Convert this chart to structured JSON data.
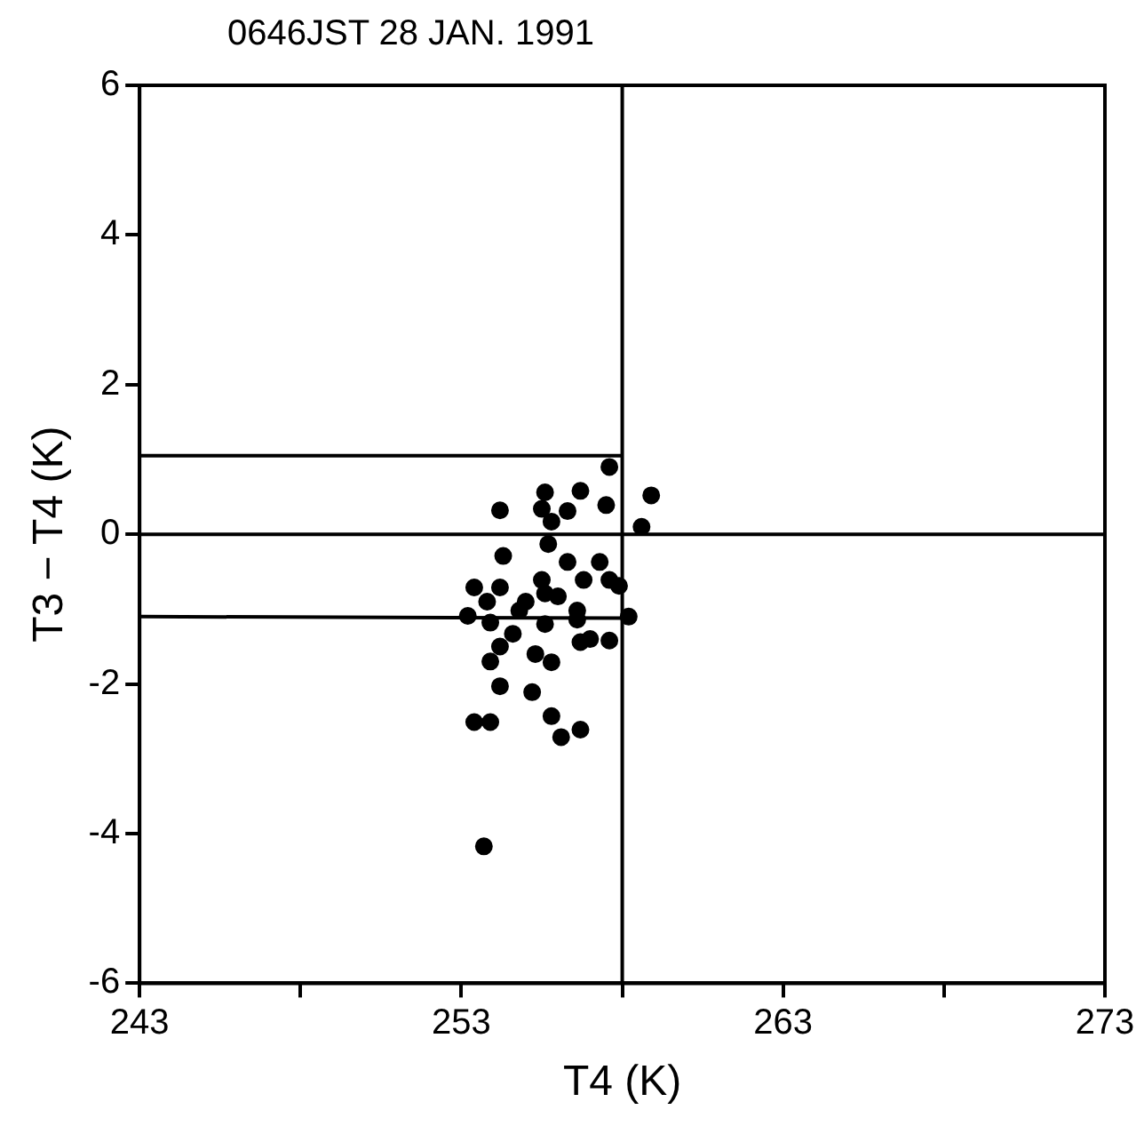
{
  "chart_data": {
    "type": "scatter",
    "title": "0646JST 28 JAN. 1991",
    "xlabel": "T4 (K)",
    "ylabel": "T3 − T4 (K)",
    "xlim": [
      243,
      273
    ],
    "xticks": [
      243,
      {
        "value": 248,
        "label": null
      },
      253,
      {
        "value": 258,
        "label": null
      },
      263,
      {
        "value": 268,
        "label": null
      },
      273
    ],
    "ylim": [
      -6,
      6
    ],
    "yticks": [
      -6,
      -4,
      -2,
      0,
      2,
      4,
      6
    ],
    "grid": false,
    "legend": false,
    "marker": "circle",
    "ref_lines": [
      {
        "axis": "y",
        "value": 0,
        "color": "#000000"
      },
      {
        "axis": "x",
        "value": 258,
        "color": "#000000"
      }
    ],
    "series": [
      {
        "color": "#000000",
        "x": [
          257.6,
          258.9,
          258.6,
          254.2,
          255.6,
          256.7,
          257.5,
          255.5,
          255.8,
          256.3,
          255.7,
          254.3,
          256.3,
          257.3,
          253.4,
          254.2,
          255.5,
          256.8,
          257.6,
          257.9,
          253.8,
          255.0,
          254.8,
          256.0,
          255.6,
          253.2,
          253.9,
          255.6,
          256.6,
          256.6,
          258.2,
          254.6,
          254.2,
          253.9,
          255.3,
          255.8,
          256.7,
          257.0,
          257.6,
          254.2,
          255.2,
          253.4,
          253.9,
          255.8,
          256.1,
          256.7,
          253.7
        ],
        "values": [
          0.9,
          0.52,
          0.1,
          0.32,
          0.56,
          0.58,
          0.39,
          0.34,
          0.17,
          0.31,
          -0.13,
          -0.29,
          -0.37,
          -0.37,
          -0.71,
          -0.71,
          -0.61,
          -0.61,
          -0.61,
          -0.69,
          -0.9,
          -0.9,
          -1.02,
          -0.83,
          -0.79,
          -1.09,
          -1.18,
          -1.2,
          -1.02,
          -1.14,
          -1.1,
          -1.33,
          -1.5,
          -1.7,
          -1.6,
          -1.71,
          -1.44,
          -1.4,
          -1.42,
          -2.03,
          -2.11,
          -2.51,
          -2.51,
          -2.43,
          -2.71,
          -2.61,
          -4.17
        ]
      },
      {
        "type": "line",
        "marker": "none",
        "color": "#000000",
        "x": [
          243,
          258
        ],
        "values": [
          1.05,
          1.05
        ]
      },
      {
        "type": "line",
        "marker": "none",
        "color": "#000000",
        "x": [
          243,
          258
        ],
        "values": [
          -1.1,
          -1.12
        ]
      }
    ]
  }
}
